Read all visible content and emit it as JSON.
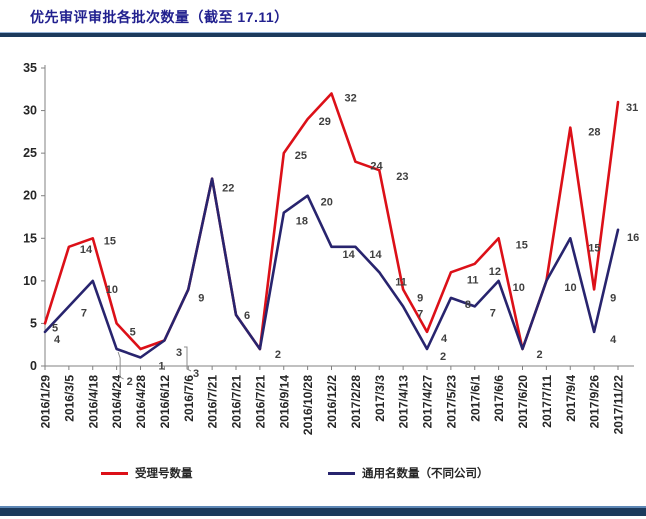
{
  "title": "优先审评审批各批次数量（截至 17.11）",
  "chart_data": {
    "type": "line",
    "categories": [
      "2016/1/29",
      "2016/3/5",
      "2016/4/18",
      "2016/4/24",
      "2016/4/28",
      "2016/6/12",
      "2016/7/6",
      "2016/7/21",
      "2016/7/21",
      "2016/7/21",
      "2016/9/14",
      "2016/10/28",
      "2016/12/2",
      "2017/2/28",
      "2017/3/3",
      "2017/4/13",
      "2017/4/27",
      "2017/5/23",
      "2017/6/1",
      "2017/6/6",
      "2017/6/20",
      "2017/7/11",
      "2017/9/4",
      "2017/9/26",
      "2017/11/22"
    ],
    "series": [
      {
        "name": "受理号数量",
        "color": "#dc1018",
        "values": [
          5,
          14,
          15,
          5,
          2,
          3,
          9,
          22,
          6,
          2,
          25,
          29,
          32,
          24,
          23,
          9,
          4,
          11,
          12,
          15,
          2,
          10,
          28,
          9,
          31
        ]
      },
      {
        "name": "通用名数量（不同公司）",
        "color": "#28246e",
        "values": [
          4,
          7,
          10,
          2,
          1,
          3,
          9,
          22,
          6,
          2,
          18,
          20,
          14,
          14,
          11,
          7,
          2,
          8,
          7,
          10,
          2,
          10,
          15,
          4,
          16
        ]
      }
    ],
    "title": "优先审评审批各批次数量（截至 17.11）",
    "xlabel": "",
    "ylabel": "",
    "ylim": [
      0,
      35
    ],
    "ytick_step": 5,
    "grid": false,
    "legend_position": "bottom",
    "data_labels": true,
    "x_label_rotation": -90
  },
  "colors": {
    "title_text": "#22218f",
    "rule_bar": "#1c3a5c",
    "axis_line": "#808080",
    "tick_text": "#262626",
    "data_label_text": "#3f3f3f"
  }
}
